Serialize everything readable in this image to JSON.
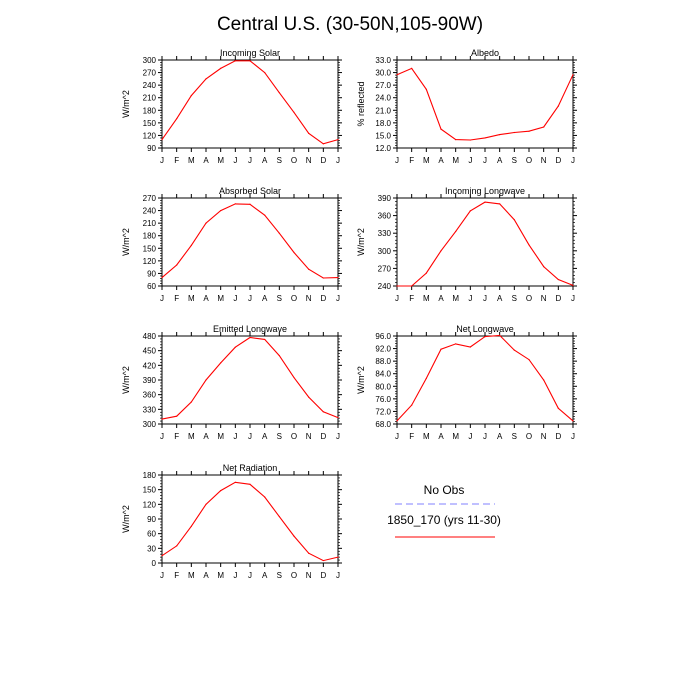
{
  "page": {
    "title": "Central U.S. (30-50N,105-90W)"
  },
  "months": [
    "J",
    "F",
    "M",
    "A",
    "M",
    "J",
    "J",
    "A",
    "S",
    "O",
    "N",
    "D",
    "J"
  ],
  "colors": {
    "model": "#ff0000",
    "obs": "#8080ff",
    "axis": "#000000"
  },
  "legend": {
    "obs_label": "No Obs",
    "model_label": "1850_170 (yrs 11-30)",
    "obs_style": "dashed",
    "model_style": "solid"
  },
  "chart_data": [
    {
      "type": "line",
      "title": "Incoming Solar",
      "ylabel": "W/m^2",
      "ylim": [
        90,
        300
      ],
      "yticks": [
        "90",
        "120",
        "150",
        "180",
        "210",
        "240",
        "270",
        "300"
      ],
      "categories": [
        "J",
        "F",
        "M",
        "A",
        "M",
        "J",
        "J",
        "A",
        "S",
        "O",
        "N",
        "D",
        "J"
      ],
      "series": [
        {
          "values": [
            110,
            160,
            215,
            255,
            280,
            298,
            298,
            270,
            222,
            175,
            125,
            100,
            110
          ]
        }
      ]
    },
    {
      "type": "line",
      "title": "Albedo",
      "ylabel": "% reflected",
      "ylim": [
        12,
        33
      ],
      "yticks": [
        "12.0",
        "15.0",
        "18.0",
        "21.0",
        "24.0",
        "27.0",
        "30.0",
        "33.0"
      ],
      "categories": [
        "J",
        "F",
        "M",
        "A",
        "M",
        "J",
        "J",
        "A",
        "S",
        "O",
        "N",
        "D",
        "J"
      ],
      "series": [
        {
          "values": [
            29.5,
            31.0,
            26.0,
            16.5,
            14.0,
            13.9,
            14.4,
            15.2,
            15.7,
            16.0,
            17.0,
            22.0,
            29.5
          ]
        }
      ]
    },
    {
      "type": "line",
      "title": "Absorbed Solar",
      "ylabel": "W/m^2",
      "ylim": [
        60,
        270
      ],
      "yticks": [
        "60",
        "90",
        "120",
        "150",
        "180",
        "210",
        "240",
        "270"
      ],
      "categories": [
        "J",
        "F",
        "M",
        "A",
        "M",
        "J",
        "J",
        "A",
        "S",
        "O",
        "N",
        "D",
        "J"
      ],
      "series": [
        {
          "values": [
            80,
            110,
            157,
            210,
            240,
            256,
            255,
            229,
            186,
            140,
            100,
            79,
            80
          ]
        }
      ]
    },
    {
      "type": "line",
      "title": "Incoming Longwave",
      "ylabel": "W/m^2",
      "ylim": [
        240,
        390
      ],
      "yticks": [
        "240",
        "270",
        "300",
        "330",
        "360",
        "390"
      ],
      "categories": [
        "J",
        "F",
        "M",
        "A",
        "M",
        "J",
        "J",
        "A",
        "S",
        "O",
        "N",
        "D",
        "J"
      ],
      "series": [
        {
          "values": [
            240,
            240,
            262,
            300,
            333,
            368,
            383,
            380,
            353,
            310,
            273,
            251,
            241
          ]
        }
      ]
    },
    {
      "type": "line",
      "title": "Emitted Longwave",
      "ylabel": "W/m^2",
      "ylim": [
        300,
        480
      ],
      "yticks": [
        "300",
        "330",
        "360",
        "390",
        "420",
        "450",
        "480"
      ],
      "categories": [
        "J",
        "F",
        "M",
        "A",
        "M",
        "J",
        "J",
        "A",
        "S",
        "O",
        "N",
        "D",
        "J"
      ],
      "series": [
        {
          "values": [
            310,
            316,
            345,
            390,
            425,
            457,
            477,
            473,
            440,
            395,
            355,
            325,
            313
          ]
        }
      ]
    },
    {
      "type": "line",
      "title": "Net Longwave",
      "ylabel": "W/m^2",
      "ylim": [
        68,
        96
      ],
      "yticks": [
        "68.0",
        "72.0",
        "76.0",
        "80.0",
        "84.0",
        "88.0",
        "92.0",
        "96.0"
      ],
      "categories": [
        "J",
        "F",
        "M",
        "A",
        "M",
        "J",
        "J",
        "A",
        "S",
        "O",
        "N",
        "D",
        "J"
      ],
      "series": [
        {
          "values": [
            69.0,
            74.0,
            82.5,
            91.8,
            93.5,
            92.5,
            95.8,
            96.2,
            91.5,
            88.5,
            82.0,
            73.0,
            69.0
          ]
        }
      ]
    },
    {
      "type": "line",
      "title": "Net Radiation",
      "ylabel": "W/m^2",
      "ylim": [
        0,
        180
      ],
      "yticks": [
        "0",
        "30",
        "60",
        "90",
        "120",
        "150",
        "180"
      ],
      "categories": [
        "J",
        "F",
        "M",
        "A",
        "M",
        "J",
        "J",
        "A",
        "S",
        "O",
        "N",
        "D",
        "J"
      ],
      "series": [
        {
          "values": [
            15,
            35,
            75,
            120,
            148,
            165,
            161,
            135,
            95,
            55,
            20,
            5,
            12
          ]
        }
      ]
    }
  ]
}
